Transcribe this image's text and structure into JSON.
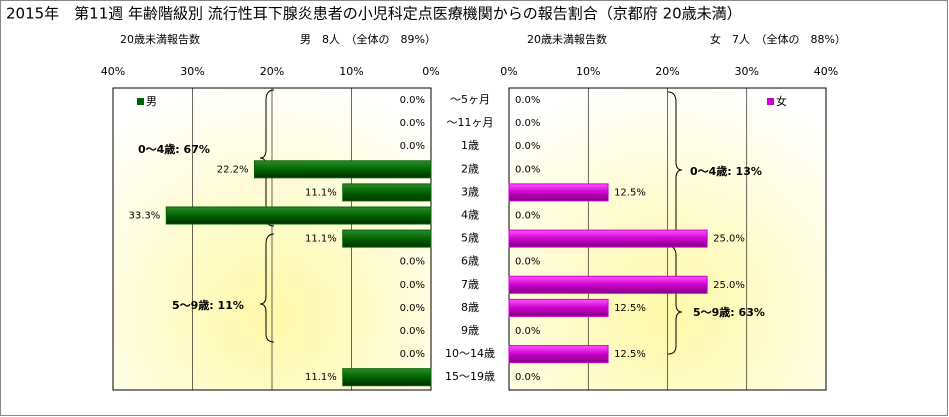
{
  "chart_data": {
    "type": "butterfly",
    "title": "2015年　第11週 年齢階級別 流行性耳下腺炎患者の小児科定点医療機関からの報告割合（京都府 20歳未満）",
    "categories": [
      "～5ヶ月",
      "～11ヶ月",
      "1歳",
      "2歳",
      "3歳",
      "4歳",
      "5歳",
      "6歳",
      "7歳",
      "8歳",
      "9歳",
      "10～14歳",
      "15～19歳"
    ],
    "series": [
      {
        "name": "男",
        "color": "#006400",
        "subheader": "20歳未満報告数",
        "header": "男　8人　（全体の　89%）",
        "values": [
          0,
          0,
          0,
          22.2,
          11.1,
          33.3,
          11.1,
          0,
          0,
          0,
          0,
          0,
          11.1
        ],
        "value_labels": [
          "0.0%",
          "0.0%",
          "0.0%",
          "22.2%",
          "11.1%",
          "33.3%",
          "11.1%",
          "0.0%",
          "0.0%",
          "0.0%",
          "0.0%",
          "0.0%",
          "11.1%"
        ],
        "xlim": [
          0,
          40
        ],
        "xticks": [
          {
            "value": 40,
            "label": "40%"
          },
          {
            "value": 30,
            "label": "30%"
          },
          {
            "value": 20,
            "label": "20%"
          },
          {
            "value": 10,
            "label": "10%"
          },
          {
            "value": 0,
            "label": "0%"
          }
        ],
        "annotations": [
          "0～4歳: 67%",
          "5～9歳: 11%"
        ]
      },
      {
        "name": "女",
        "color": "#cc00cc",
        "subheader": "20歳未満報告数",
        "header": "女　7人　（全体の　88%）",
        "values": [
          0,
          0,
          0,
          0,
          12.5,
          0,
          25,
          0,
          25,
          12.5,
          0,
          12.5,
          0
        ],
        "value_labels": [
          "0.0%",
          "0.0%",
          "0.0%",
          "0.0%",
          "12.5%",
          "0.0%",
          "25.0%",
          "0.0%",
          "25.0%",
          "12.5%",
          "0.0%",
          "12.5%",
          "0.0%"
        ],
        "xlim": [
          0,
          40
        ],
        "xticks": [
          {
            "value": 0,
            "label": "0%"
          },
          {
            "value": 10,
            "label": "10%"
          },
          {
            "value": 20,
            "label": "20%"
          },
          {
            "value": 30,
            "label": "30%"
          },
          {
            "value": 40,
            "label": "40%"
          }
        ],
        "annotations": [
          "0～4歳: 13%",
          "5～9歳: 63%"
        ]
      }
    ],
    "grid": true,
    "legend": "upper left"
  }
}
